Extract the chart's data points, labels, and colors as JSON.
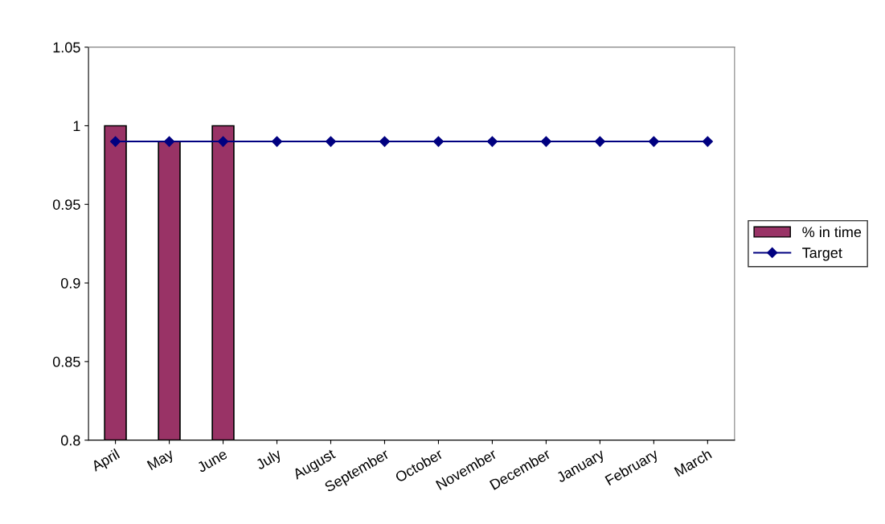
{
  "chart_data": {
    "type": "bar",
    "categories": [
      "April",
      "May",
      "June",
      "July",
      "August",
      "September",
      "October",
      "November",
      "December",
      "January",
      "February",
      "March"
    ],
    "series": [
      {
        "name": "% in time",
        "color": "#993366",
        "values": [
          1,
          0.99,
          1,
          null,
          null,
          null,
          null,
          null,
          null,
          null,
          null,
          null
        ]
      },
      {
        "name": "Target",
        "type": "line",
        "color": "#000080",
        "values": [
          0.99,
          0.99,
          0.99,
          0.99,
          0.99,
          0.99,
          0.99,
          0.99,
          0.99,
          0.99,
          0.99,
          0.99
        ]
      }
    ],
    "ylim": [
      0.8,
      1.05
    ],
    "yticks": [
      0.8,
      0.85,
      0.9,
      0.95,
      1,
      1.05
    ],
    "marker": "diamond",
    "line_style": "solid",
    "legend": "right",
    "grid": false
  }
}
